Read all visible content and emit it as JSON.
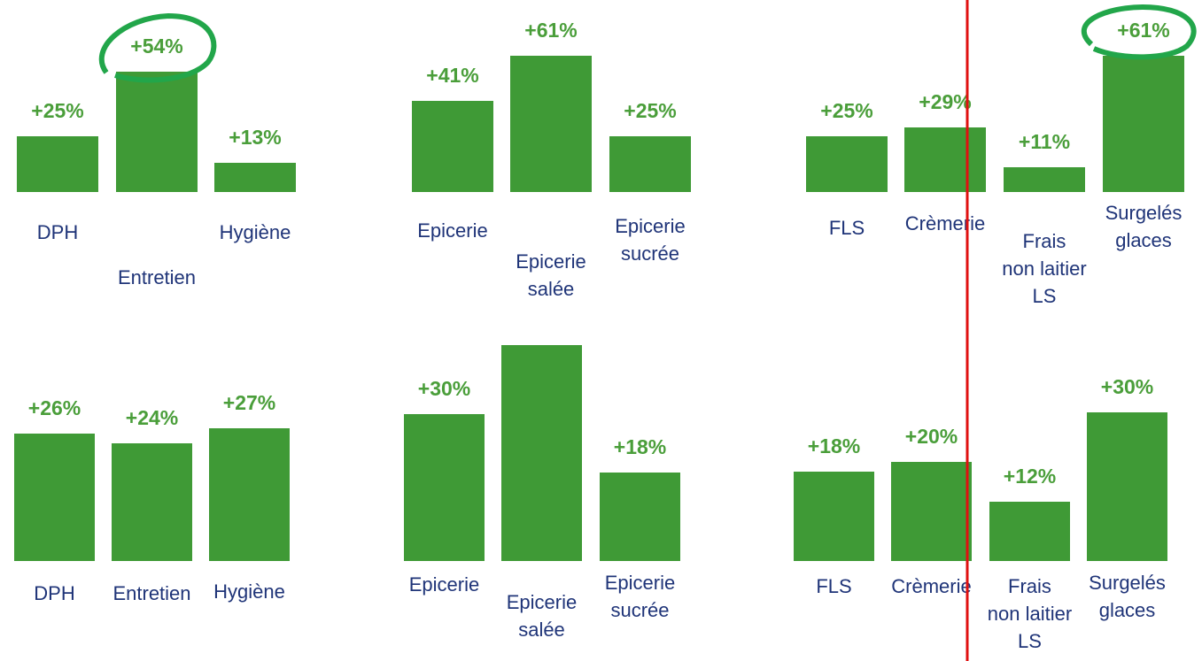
{
  "chart_data": [
    {
      "type": "bar",
      "categories": [
        "DPH",
        "Entretien",
        "Hygiène"
      ],
      "values": [
        25,
        54,
        13
      ],
      "value_labels": [
        "+25%",
        "+54%",
        "+13%"
      ],
      "color": "#3f9a36"
    },
    {
      "type": "bar",
      "categories": [
        "Epicerie",
        "Epicerie\nsalée",
        "Epicerie\nsucrée"
      ],
      "values": [
        41,
        61,
        25
      ],
      "value_labels": [
        "+41%",
        "+61%",
        "+25%"
      ],
      "color": "#3f9a36"
    },
    {
      "type": "bar",
      "categories": [
        "FLS",
        "Crèmerie",
        "Frais\nnon laitier\nLS",
        "Surgelés\nglaces"
      ],
      "values": [
        25,
        29,
        11,
        61
      ],
      "value_labels": [
        "+25%",
        "+29%",
        "+11%",
        "+61%"
      ],
      "color": "#3f9a36"
    },
    {
      "type": "bar",
      "categories": [
        "DPH",
        "Entretien",
        "Hygiène"
      ],
      "values": [
        26,
        24,
        27
      ],
      "value_labels": [
        "+26%",
        "+24%",
        "+27%"
      ],
      "color": "#3f9a36"
    },
    {
      "type": "bar",
      "categories": [
        "Epicerie",
        "Epicerie\nsalée",
        "Epicerie\nsucrée"
      ],
      "values": [
        30,
        44,
        18
      ],
      "value_labels": [
        "+30%",
        null,
        "+18%"
      ],
      "color": "#3f9a36"
    },
    {
      "type": "bar",
      "categories": [
        "FLS",
        "Crèmerie",
        "Frais\nnon laitier\nLS",
        "Surgelés\nglaces"
      ],
      "values": [
        18,
        20,
        12,
        30
      ],
      "value_labels": [
        "+18%",
        "+20%",
        "+12%",
        "+30%"
      ],
      "color": "#3f9a36"
    }
  ]
}
